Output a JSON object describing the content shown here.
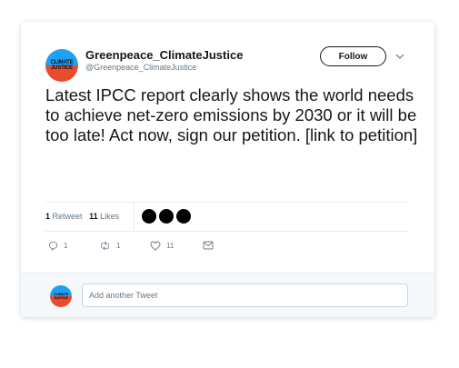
{
  "author": {
    "name": "Greenpeace_ClimateJustice",
    "handle": "@Greenpeace_ClimateJustice",
    "avatar_text": "CLIMATE JUSTICE"
  },
  "follow_label": "Follow",
  "tweet_text": "Latest IPCC report clearly shows the world needs to achieve net-zero emissions by 2030 or it will be too late! Act now, sign our petition. [link to petition]",
  "stats": {
    "retweets_count": "1",
    "retweets_label": "Retweet",
    "likes_count": "11",
    "likes_label": "Likes"
  },
  "actions": {
    "replies": "1",
    "retweets": "1",
    "likes": "11"
  },
  "reply_placeholder": "Add another Tweet",
  "colors": {
    "avatar_top": "#1da1f2",
    "avatar_bottom": "#e94b2c",
    "muted_text": "#657786"
  }
}
